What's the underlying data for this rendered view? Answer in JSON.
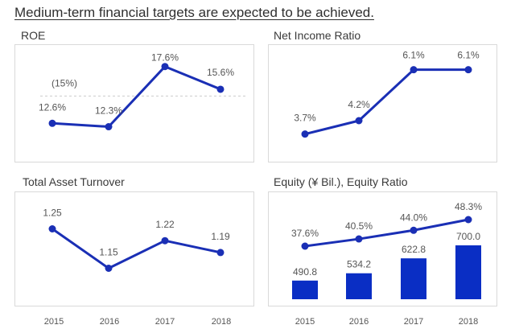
{
  "headline": "Medium-term  financial targets are expected to be achieved.",
  "colors": {
    "line": "#1a2fb5",
    "bar": "#0a2ec4",
    "label": "#555555",
    "target": "#cccccc"
  },
  "years": [
    "2015",
    "2016",
    "2017",
    "2018"
  ],
  "chart_data": [
    {
      "type": "line",
      "title": "ROE",
      "categories": [
        "2015",
        "2016",
        "2017",
        "2018"
      ],
      "values": [
        12.6,
        12.3,
        17.6,
        15.6
      ],
      "labels": [
        "12.6%",
        "12.3%",
        "17.6%",
        "15.6%"
      ],
      "target": {
        "value": 15,
        "label": "(15%)"
      },
      "ylim": [
        10,
        18.5
      ]
    },
    {
      "type": "line",
      "title": "Net Income Ratio",
      "categories": [
        "2015",
        "2016",
        "2017",
        "2018"
      ],
      "values": [
        3.7,
        4.2,
        6.1,
        6.1
      ],
      "labels": [
        "3.7%",
        "4.2%",
        "6.1%",
        "6.1%"
      ],
      "ylim": [
        3.0,
        6.6
      ]
    },
    {
      "type": "line",
      "title": "Total Asset Turnover",
      "categories": [
        "2015",
        "2016",
        "2017",
        "2018"
      ],
      "values": [
        1.25,
        1.15,
        1.22,
        1.19
      ],
      "labels": [
        "1.25",
        "1.15",
        "1.22",
        "1.19"
      ],
      "ylim": [
        1.1,
        1.3
      ]
    },
    {
      "type": "bar+line",
      "title": "Equity (¥ Bil.), Equity Ratio",
      "categories": [
        "2015",
        "2016",
        "2017",
        "2018"
      ],
      "bars": {
        "values": [
          490.8,
          534.2,
          622.8,
          700.0
        ],
        "labels": [
          "490.8",
          "534.2",
          "622.8",
          "700.0"
        ]
      },
      "line": {
        "values": [
          37.6,
          40.5,
          44.0,
          48.3
        ],
        "labels": [
          "37.6%",
          "40.5%",
          "44.0%",
          "48.3%"
        ]
      }
    }
  ]
}
